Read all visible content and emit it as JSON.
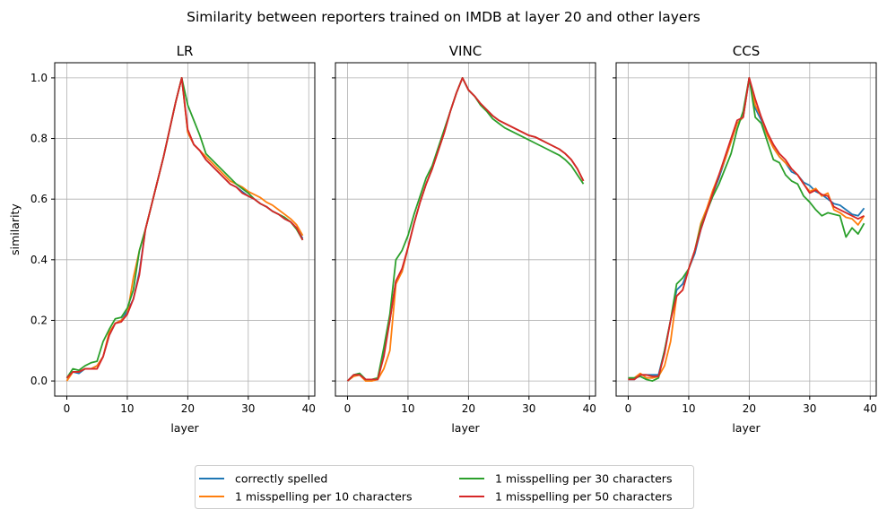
{
  "figure": {
    "suptitle": "Similarity between reporters trained on IMDB at layer 20 and other layers"
  },
  "colors": {
    "correctly_spelled": "#1f77b4",
    "misspell_10": "#ff7f0e",
    "misspell_30": "#2ca02c",
    "misspell_50": "#d62728",
    "grid": "#b0b0b0"
  },
  "legend": {
    "placement": "bottom-center",
    "columns": 2,
    "entries": [
      "correctly spelled",
      "1 misspelling per 10 characters",
      "1 misspelling per 30 characters",
      "1 misspelling per 50 characters"
    ]
  },
  "chart_data": [
    {
      "type": "line",
      "title": "LR",
      "xlabel": "layer",
      "ylabel": "similarity",
      "xlim": [
        -2,
        41
      ],
      "ylim": [
        -0.05,
        1.05
      ],
      "xticks": [
        0,
        10,
        20,
        30,
        40
      ],
      "yticks": [
        0.0,
        0.2,
        0.4,
        0.6,
        0.8,
        1.0
      ],
      "ytick_labels": [
        "0.0",
        "0.2",
        "0.4",
        "0.6",
        "0.8",
        "1.0"
      ],
      "grid": true,
      "x": [
        0,
        1,
        2,
        3,
        4,
        5,
        6,
        7,
        8,
        9,
        10,
        11,
        12,
        13,
        14,
        15,
        16,
        17,
        18,
        19,
        20,
        21,
        22,
        23,
        24,
        25,
        26,
        27,
        28,
        29,
        30,
        31,
        32,
        33,
        34,
        35,
        36,
        37,
        38,
        39
      ],
      "series": [
        {
          "name": "correctly spelled",
          "values": [
            0.01,
            0.03,
            0.025,
            0.04,
            0.04,
            0.05,
            0.08,
            0.15,
            0.19,
            0.2,
            0.23,
            0.27,
            0.36,
            0.5,
            0.58,
            0.66,
            0.74,
            0.83,
            0.92,
            1.0,
            0.82,
            0.78,
            0.76,
            0.73,
            0.71,
            0.69,
            0.67,
            0.65,
            0.64,
            0.625,
            0.61,
            0.6,
            0.585,
            0.575,
            0.56,
            0.55,
            0.535,
            0.525,
            0.505,
            0.47
          ]
        },
        {
          "name": "1 misspelling per 10 characters",
          "values": [
            0.0,
            0.03,
            0.03,
            0.04,
            0.04,
            0.05,
            0.08,
            0.16,
            0.19,
            0.2,
            0.22,
            0.34,
            0.43,
            0.5,
            0.58,
            0.66,
            0.74,
            0.83,
            0.92,
            1.0,
            0.82,
            0.78,
            0.76,
            0.74,
            0.72,
            0.7,
            0.68,
            0.66,
            0.65,
            0.64,
            0.625,
            0.615,
            0.605,
            0.59,
            0.58,
            0.565,
            0.55,
            0.535,
            0.515,
            0.48
          ]
        },
        {
          "name": "1 misspelling per 30 characters",
          "values": [
            0.01,
            0.04,
            0.035,
            0.05,
            0.06,
            0.065,
            0.13,
            0.17,
            0.205,
            0.21,
            0.24,
            0.3,
            0.43,
            0.5,
            0.58,
            0.66,
            0.74,
            0.83,
            0.92,
            1.0,
            0.91,
            0.86,
            0.81,
            0.75,
            0.73,
            0.71,
            0.69,
            0.67,
            0.65,
            0.635,
            0.62,
            0.6,
            0.585,
            0.575,
            0.56,
            0.55,
            0.54,
            0.525,
            0.5,
            0.465
          ]
        },
        {
          "name": "1 misspelling per 50 characters",
          "values": [
            0.01,
            0.03,
            0.03,
            0.04,
            0.04,
            0.04,
            0.08,
            0.15,
            0.19,
            0.195,
            0.22,
            0.27,
            0.35,
            0.5,
            0.58,
            0.66,
            0.74,
            0.83,
            0.92,
            1.0,
            0.83,
            0.78,
            0.76,
            0.73,
            0.71,
            0.69,
            0.67,
            0.65,
            0.64,
            0.62,
            0.61,
            0.6,
            0.585,
            0.575,
            0.56,
            0.55,
            0.535,
            0.525,
            0.505,
            0.465
          ]
        }
      ]
    },
    {
      "type": "line",
      "title": "VINC",
      "xlabel": "layer",
      "ylabel": "",
      "xlim": [
        -2,
        41
      ],
      "ylim": [
        -0.05,
        1.05
      ],
      "xticks": [
        0,
        10,
        20,
        30,
        40
      ],
      "yticks": [
        0.0,
        0.2,
        0.4,
        0.6,
        0.8,
        1.0
      ],
      "ytick_labels": [],
      "grid": true,
      "x": [
        0,
        1,
        2,
        3,
        4,
        5,
        6,
        7,
        8,
        9,
        10,
        11,
        12,
        13,
        14,
        15,
        16,
        17,
        18,
        19,
        20,
        21,
        22,
        23,
        24,
        25,
        26,
        27,
        28,
        29,
        30,
        31,
        32,
        33,
        34,
        35,
        36,
        37,
        38,
        39
      ],
      "series": [
        {
          "name": "correctly spelled",
          "values": [
            0.0,
            0.02,
            0.025,
            0.005,
            0.005,
            0.005,
            0.1,
            0.2,
            0.33,
            0.36,
            0.44,
            0.52,
            0.59,
            0.65,
            0.7,
            0.76,
            0.82,
            0.89,
            0.95,
            1.0,
            0.96,
            0.94,
            0.915,
            0.895,
            0.875,
            0.86,
            0.85,
            0.84,
            0.83,
            0.82,
            0.81,
            0.805,
            0.795,
            0.785,
            0.775,
            0.765,
            0.75,
            0.73,
            0.7,
            0.66
          ]
        },
        {
          "name": "1 misspelling per 10 characters",
          "values": [
            0.0,
            0.015,
            0.02,
            0.0,
            0.0,
            0.005,
            0.04,
            0.1,
            0.32,
            0.36,
            0.44,
            0.52,
            0.59,
            0.65,
            0.7,
            0.76,
            0.82,
            0.89,
            0.95,
            1.0,
            0.96,
            0.94,
            0.915,
            0.895,
            0.875,
            0.86,
            0.85,
            0.84,
            0.83,
            0.82,
            0.81,
            0.805,
            0.795,
            0.785,
            0.775,
            0.765,
            0.75,
            0.73,
            0.7,
            0.66
          ]
        },
        {
          "name": "1 misspelling per 30 characters",
          "values": [
            0.0,
            0.02,
            0.025,
            0.005,
            0.005,
            0.01,
            0.11,
            0.22,
            0.4,
            0.43,
            0.48,
            0.55,
            0.61,
            0.67,
            0.71,
            0.77,
            0.83,
            0.89,
            0.95,
            1.0,
            0.96,
            0.94,
            0.91,
            0.89,
            0.865,
            0.85,
            0.835,
            0.825,
            0.815,
            0.805,
            0.795,
            0.785,
            0.775,
            0.765,
            0.755,
            0.745,
            0.73,
            0.71,
            0.68,
            0.65
          ]
        },
        {
          "name": "1 misspelling per 50 characters",
          "values": [
            0.0,
            0.02,
            0.02,
            0.005,
            0.005,
            0.005,
            0.08,
            0.2,
            0.33,
            0.37,
            0.44,
            0.52,
            0.59,
            0.65,
            0.7,
            0.76,
            0.82,
            0.89,
            0.95,
            1.0,
            0.96,
            0.94,
            0.915,
            0.895,
            0.875,
            0.86,
            0.85,
            0.84,
            0.83,
            0.82,
            0.81,
            0.805,
            0.795,
            0.785,
            0.775,
            0.765,
            0.75,
            0.73,
            0.7,
            0.66
          ]
        }
      ]
    },
    {
      "type": "line",
      "title": "CCS",
      "xlabel": "layer",
      "ylabel": "",
      "xlim": [
        -2,
        41
      ],
      "ylim": [
        -0.05,
        1.05
      ],
      "xticks": [
        0,
        10,
        20,
        30,
        40
      ],
      "yticks": [
        0.0,
        0.2,
        0.4,
        0.6,
        0.8,
        1.0
      ],
      "ytick_labels": [],
      "grid": true,
      "x": [
        0,
        1,
        2,
        3,
        4,
        5,
        6,
        7,
        8,
        9,
        10,
        11,
        12,
        13,
        14,
        15,
        16,
        17,
        18,
        19,
        20,
        21,
        22,
        23,
        24,
        25,
        26,
        27,
        28,
        29,
        30,
        31,
        32,
        33,
        34,
        35,
        36,
        37,
        38,
        39
      ],
      "series": [
        {
          "name": "correctly spelled",
          "values": [
            0.005,
            0.005,
            0.02,
            0.02,
            0.02,
            0.02,
            0.1,
            0.2,
            0.3,
            0.32,
            0.37,
            0.42,
            0.5,
            0.56,
            0.62,
            0.67,
            0.73,
            0.79,
            0.85,
            0.87,
            1.0,
            0.9,
            0.86,
            0.81,
            0.77,
            0.74,
            0.72,
            0.69,
            0.68,
            0.655,
            0.645,
            0.625,
            0.615,
            0.6,
            0.585,
            0.58,
            0.565,
            0.55,
            0.545,
            0.57
          ]
        },
        {
          "name": "1 misspelling per 10 characters",
          "values": [
            0.005,
            0.01,
            0.025,
            0.01,
            0.01,
            0.015,
            0.05,
            0.13,
            0.28,
            0.3,
            0.37,
            0.43,
            0.52,
            0.57,
            0.63,
            0.68,
            0.73,
            0.79,
            0.85,
            0.87,
            1.0,
            0.91,
            0.87,
            0.81,
            0.77,
            0.74,
            0.72,
            0.7,
            0.68,
            0.65,
            0.625,
            0.635,
            0.61,
            0.62,
            0.565,
            0.555,
            0.54,
            0.535,
            0.515,
            0.545
          ]
        },
        {
          "name": "1 misspelling per 30 characters",
          "values": [
            0.01,
            0.01,
            0.015,
            0.005,
            0.0,
            0.01,
            0.1,
            0.2,
            0.32,
            0.34,
            0.37,
            0.43,
            0.51,
            0.56,
            0.61,
            0.65,
            0.7,
            0.75,
            0.83,
            0.89,
            1.0,
            0.87,
            0.85,
            0.79,
            0.73,
            0.72,
            0.68,
            0.66,
            0.65,
            0.61,
            0.59,
            0.565,
            0.545,
            0.555,
            0.55,
            0.545,
            0.475,
            0.505,
            0.485,
            0.52
          ]
        },
        {
          "name": "1 misspelling per 50 characters",
          "values": [
            0.005,
            0.005,
            0.02,
            0.02,
            0.015,
            0.015,
            0.09,
            0.2,
            0.28,
            0.3,
            0.37,
            0.43,
            0.5,
            0.56,
            0.62,
            0.68,
            0.74,
            0.8,
            0.86,
            0.87,
            1.0,
            0.93,
            0.87,
            0.82,
            0.78,
            0.75,
            0.73,
            0.7,
            0.68,
            0.65,
            0.62,
            0.63,
            0.615,
            0.61,
            0.575,
            0.565,
            0.555,
            0.545,
            0.535,
            0.545
          ]
        }
      ]
    }
  ]
}
